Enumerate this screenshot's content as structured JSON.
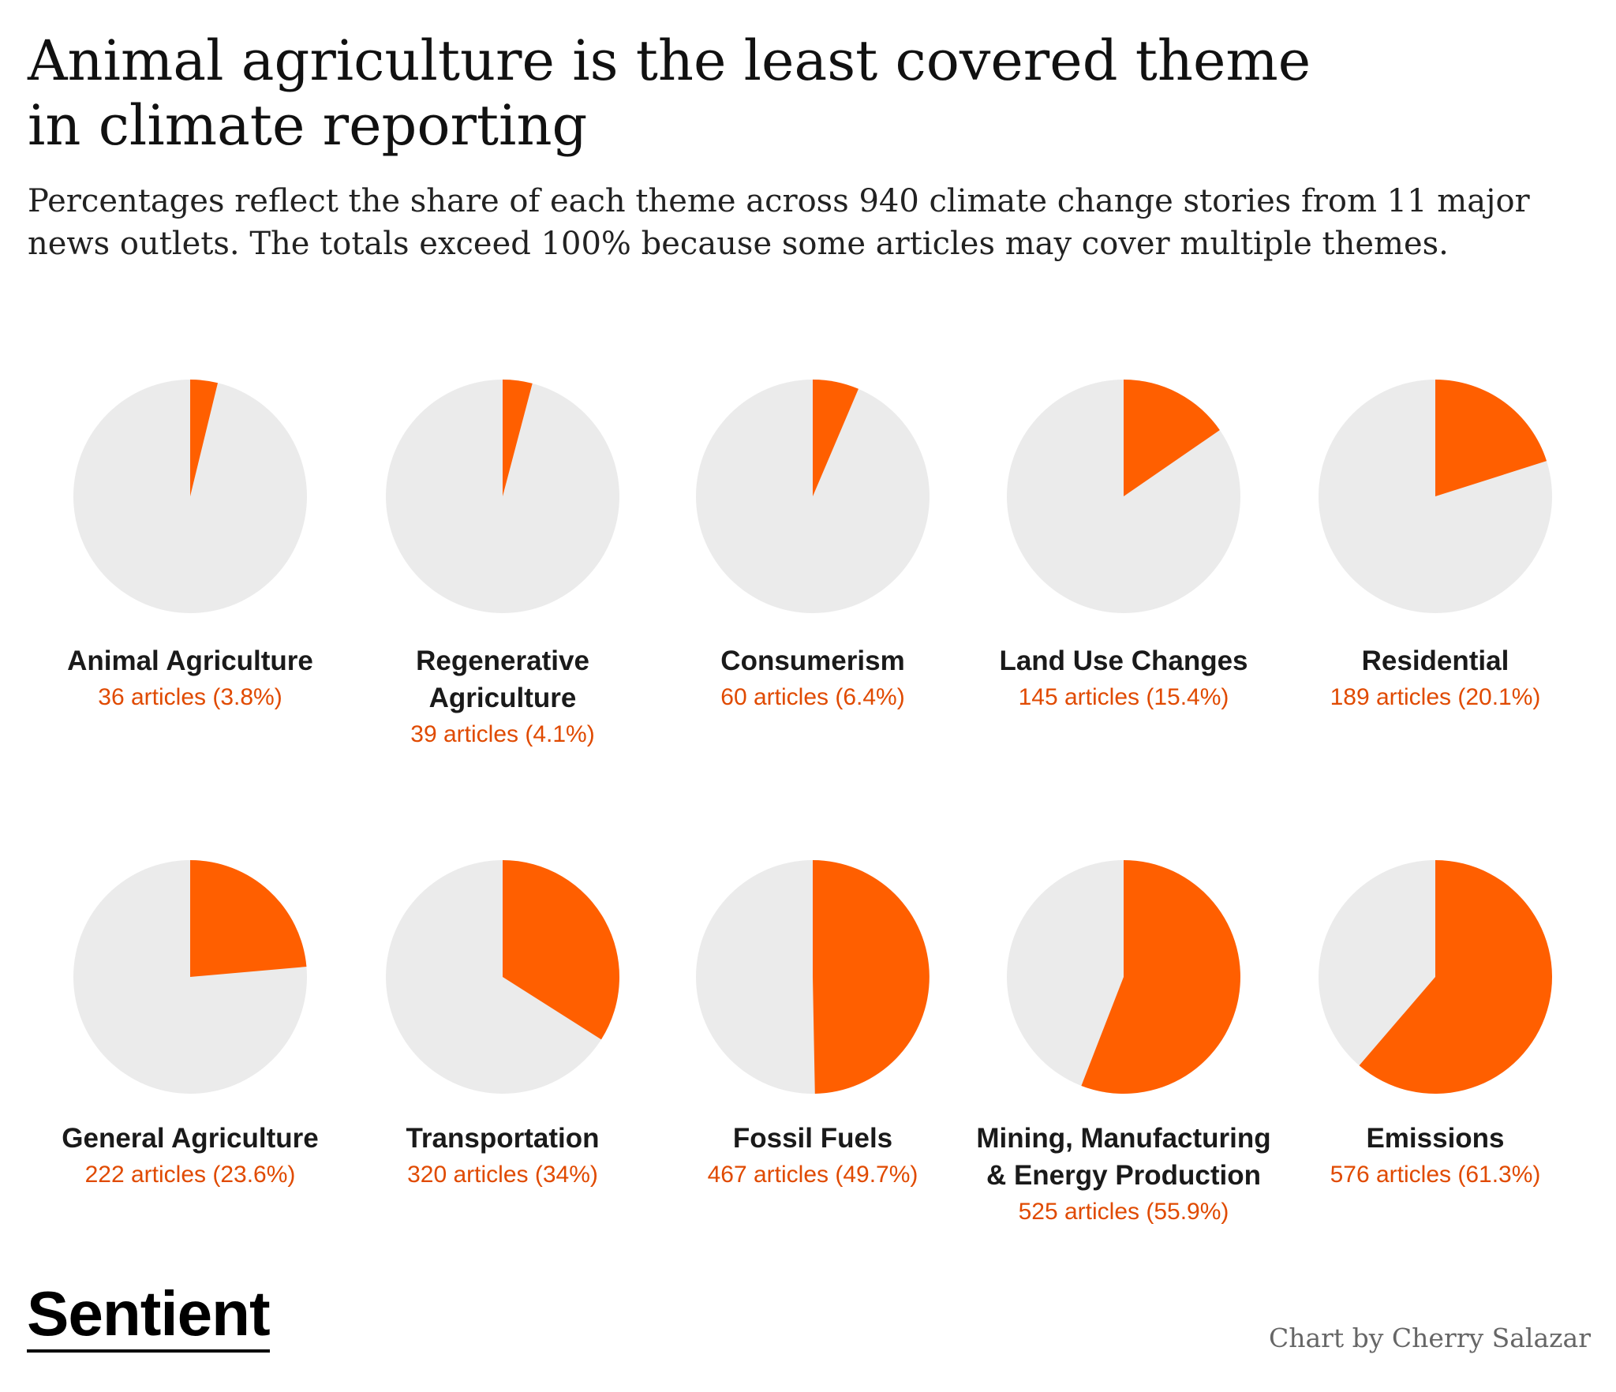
{
  "title": "Animal agriculture is the least covered theme in climate reporting",
  "subtitle": "Percentages reflect the share of each theme across 940 climate change stories from 11 major news outlets. The totals exceed 100% because some articles may cover multiple themes.",
  "brand": "Sentient",
  "credit": "Chart by Cherry Salazar",
  "colors": {
    "highlight": "#ff5f00",
    "remainder": "#ebebeb",
    "value_text": "#e04a00"
  },
  "chart_data": {
    "type": "pie",
    "total_stories": 940,
    "items": [
      {
        "label": "Animal Agriculture",
        "articles": 36,
        "percent": 3.8,
        "value_text": "36 articles (3.8%)"
      },
      {
        "label": "Regenerative Agriculture",
        "articles": 39,
        "percent": 4.1,
        "value_text": "39 articles (4.1%)"
      },
      {
        "label": "Consumerism",
        "articles": 60,
        "percent": 6.4,
        "value_text": "60 articles (6.4%)"
      },
      {
        "label": "Land Use Changes",
        "articles": 145,
        "percent": 15.4,
        "value_text": "145 articles (15.4%)"
      },
      {
        "label": "Residential",
        "articles": 189,
        "percent": 20.1,
        "value_text": "189 articles (20.1%)"
      },
      {
        "label": "General Agriculture",
        "articles": 222,
        "percent": 23.6,
        "value_text": "222 articles (23.6%)"
      },
      {
        "label": "Transportation",
        "articles": 320,
        "percent": 34,
        "value_text": "320 articles (34%)"
      },
      {
        "label": "Fossil Fuels",
        "articles": 467,
        "percent": 49.7,
        "value_text": "467 articles (49.7%)"
      },
      {
        "label": "Mining, Manufacturing & Energy Production",
        "articles": 525,
        "percent": 55.9,
        "value_text": "525 articles (55.9%)"
      },
      {
        "label": "Emissions",
        "articles": 576,
        "percent": 61.3,
        "value_text": "576 articles (61.3%)"
      }
    ]
  }
}
